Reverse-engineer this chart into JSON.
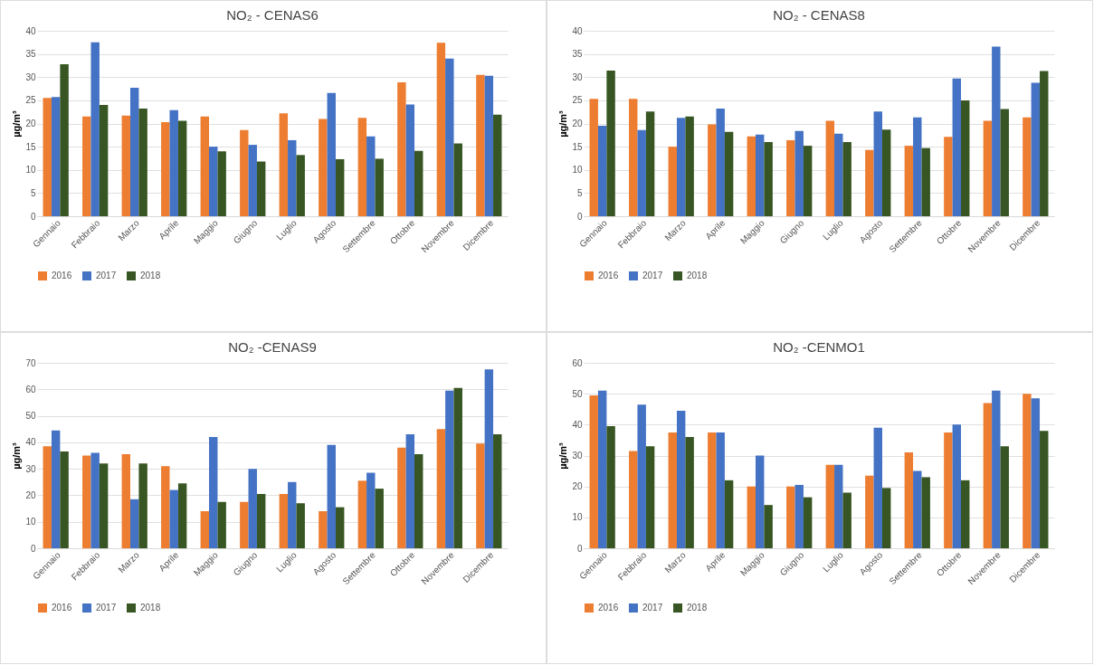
{
  "chart_data": [
    {
      "type": "bar",
      "title": "NO₂ - CENAS6",
      "ylabel": "µg/m³",
      "categories": [
        "Gennaio",
        "Febbraio",
        "Marzo",
        "Aprile",
        "Maggio",
        "Giugno",
        "Luglio",
        "Agosto",
        "Settembre",
        "Ottobre",
        "Novembre",
        "Dicembre"
      ],
      "ylim": [
        0,
        40
      ],
      "yticks": [
        0,
        5,
        10,
        15,
        20,
        25,
        30,
        35,
        40
      ],
      "grid": "y",
      "legend": "bottom",
      "series": [
        {
          "name": "2016",
          "color": "#ed7d31",
          "values": [
            25.5,
            21.5,
            21.7,
            20.3,
            21.5,
            18.6,
            22.2,
            21,
            21.2,
            28.9,
            37.4,
            30.5
          ]
        },
        {
          "name": "2017",
          "color": "#4472c4",
          "values": [
            25.7,
            37.5,
            27.7,
            22.9,
            15,
            15.4,
            16.4,
            26.6,
            17.2,
            24.1,
            34,
            30.3
          ]
        },
        {
          "name": "2018",
          "color": "#375623",
          "values": [
            32.8,
            24,
            23.2,
            20.6,
            14,
            11.8,
            13.2,
            12.3,
            12.4,
            14.1,
            15.7,
            21.9
          ]
        }
      ]
    },
    {
      "type": "bar",
      "title": "NO₂ - CENAS8",
      "ylabel": "µg/m³",
      "categories": [
        "Gennaio",
        "Febbraio",
        "Marzo",
        "Aprile",
        "Maggio",
        "Giugno",
        "Luglio",
        "Agosto",
        "Settembre",
        "Ottobre",
        "Novembre",
        "Dicembre"
      ],
      "ylim": [
        0,
        40
      ],
      "yticks": [
        0,
        5,
        10,
        15,
        20,
        25,
        30,
        35,
        40
      ],
      "grid": "y",
      "legend": "bottom",
      "series": [
        {
          "name": "2016",
          "color": "#ed7d31",
          "values": [
            25.3,
            25.3,
            15,
            19.8,
            17.2,
            16.4,
            20.6,
            14.3,
            15.2,
            17.1,
            20.6,
            21.3
          ]
        },
        {
          "name": "2017",
          "color": "#4472c4",
          "values": [
            19.5,
            18.6,
            21.2,
            23.2,
            17.6,
            18.4,
            17.8,
            22.6,
            21.3,
            29.7,
            36.6,
            28.8
          ]
        },
        {
          "name": "2018",
          "color": "#375623",
          "values": [
            31.4,
            22.6,
            21.5,
            18.2,
            16,
            15.2,
            16,
            18.7,
            14.7,
            25,
            23.1,
            31.3
          ]
        }
      ]
    },
    {
      "type": "bar",
      "title": "NO₂ -CENAS9",
      "ylabel": "µg/m³",
      "categories": [
        "Gennaio",
        "Febbraio",
        "Marzo",
        "Aprile",
        "Maggio",
        "Giugno",
        "Luglio",
        "Agosto",
        "Settembre",
        "Ottobre",
        "Novembre",
        "Dicembre"
      ],
      "ylim": [
        0,
        70
      ],
      "yticks": [
        0,
        10,
        20,
        30,
        40,
        50,
        60,
        70
      ],
      "grid": "y",
      "legend": "bottom",
      "series": [
        {
          "name": "2016",
          "color": "#ed7d31",
          "values": [
            38.5,
            35,
            35.5,
            31,
            14,
            17.5,
            20.5,
            14,
            25.5,
            38,
            45,
            39.5
          ]
        },
        {
          "name": "2017",
          "color": "#4472c4",
          "values": [
            44.5,
            36,
            18.5,
            22,
            42,
            30,
            25,
            39,
            28.5,
            43,
            59.5,
            67.5
          ]
        },
        {
          "name": "2018",
          "color": "#375623",
          "values": [
            36.5,
            32,
            32,
            24.5,
            17.5,
            20.5,
            17,
            15.5,
            22.5,
            35.5,
            60.5,
            43
          ]
        }
      ]
    },
    {
      "type": "bar",
      "title": "NO₂ -CENMO1",
      "ylabel": "µg/m³",
      "categories": [
        "Gennaio",
        "Febbraio",
        "Marzo",
        "Aprile",
        "Maggio",
        "Giugno",
        "Luglio",
        "Agosto",
        "Settembre",
        "Ottobre",
        "Novembre",
        "Dicembre"
      ],
      "ylim": [
        0,
        60
      ],
      "yticks": [
        0,
        10,
        20,
        30,
        40,
        50,
        60
      ],
      "grid": "y",
      "legend": "bottom",
      "series": [
        {
          "name": "2016",
          "color": "#ed7d31",
          "values": [
            49.5,
            31.5,
            37.5,
            37.5,
            20,
            20,
            27,
            23.5,
            31,
            37.5,
            47,
            50
          ]
        },
        {
          "name": "2017",
          "color": "#4472c4",
          "values": [
            51,
            46.5,
            44.5,
            37.5,
            30,
            20.5,
            27,
            39,
            25,
            40,
            51,
            48.5
          ]
        },
        {
          "name": "2018",
          "color": "#375623",
          "values": [
            39.5,
            33,
            36,
            22,
            14,
            16.5,
            18,
            19.5,
            23,
            22,
            33,
            38
          ]
        }
      ]
    }
  ]
}
